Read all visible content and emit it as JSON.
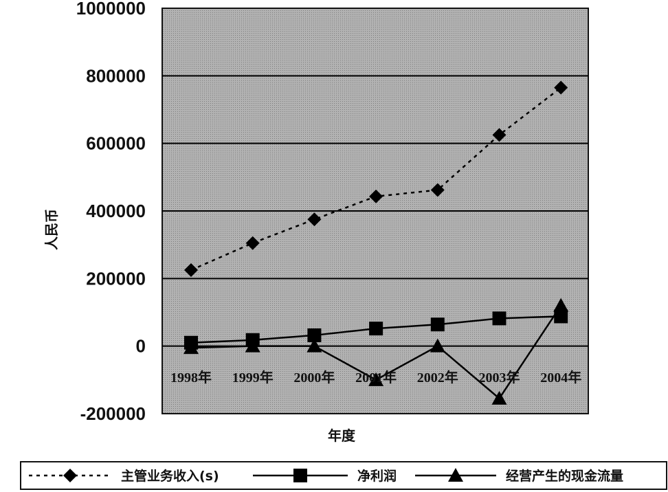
{
  "chart_data": {
    "type": "line",
    "title": "",
    "xlabel": "年度",
    "ylabel": "人民币",
    "categories": [
      "1998年",
      "1999年",
      "2000年",
      "2001年",
      "2002年",
      "2003年",
      "2004年"
    ],
    "ylim": [
      -200000,
      1000000
    ],
    "yticks": [
      "1000000",
      "800000",
      "600000",
      "400000",
      "200000",
      "0",
      "-200000"
    ],
    "grid": true,
    "legend_position": "bottom",
    "series": [
      {
        "name": "主管业务收入(s)",
        "marker": "diamond",
        "line": "dotted",
        "values": [
          225000,
          305000,
          375000,
          443000,
          462000,
          625000,
          765000
        ]
      },
      {
        "name": "净利润",
        "marker": "square",
        "line": "solid",
        "values": [
          10000,
          18000,
          32000,
          52000,
          64000,
          82000,
          88000
        ]
      },
      {
        "name": "经营产生的现金流量",
        "marker": "triangle",
        "line": "solid",
        "values": [
          -5000,
          0,
          0,
          -100000,
          0,
          -155000,
          120000
        ]
      }
    ],
    "colors": {
      "plot_background": "#a8a8a8",
      "gridline": "#000000",
      "series": "#000000"
    }
  }
}
